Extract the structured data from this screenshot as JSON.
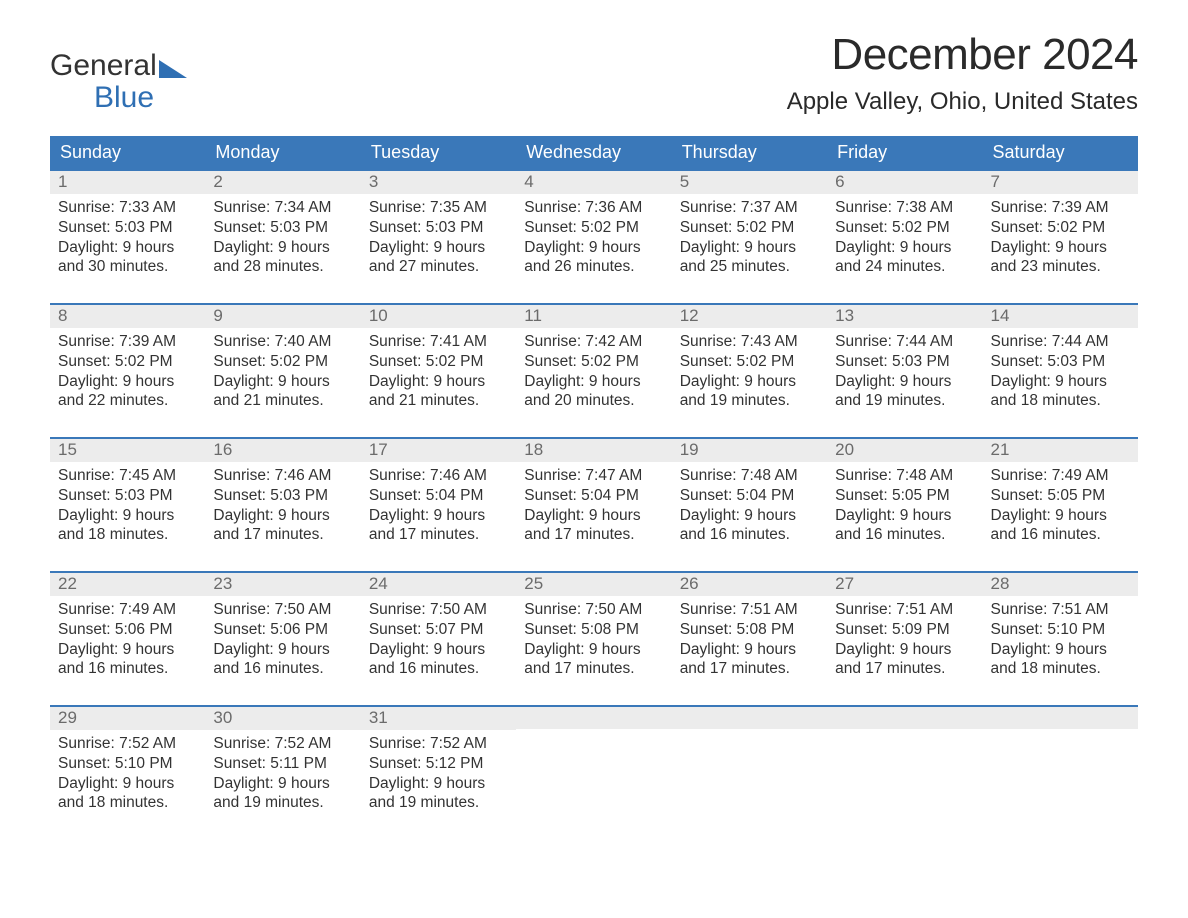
{
  "logo": {
    "word1": "General",
    "word2": "Blue"
  },
  "title": "December 2024",
  "location": "Apple Valley, Ohio, United States",
  "colors": {
    "header_bg": "#3a78b9",
    "header_text": "#ffffff",
    "date_bar_bg": "#ececec",
    "date_text": "#6b6b6b",
    "body_text": "#333333",
    "accent": "#2f6fb3",
    "page_bg": "#ffffff"
  },
  "day_names": [
    "Sunday",
    "Monday",
    "Tuesday",
    "Wednesday",
    "Thursday",
    "Friday",
    "Saturday"
  ],
  "weeks": [
    [
      {
        "date": "1",
        "sunrise": "Sunrise: 7:33 AM",
        "sunset": "Sunset: 5:03 PM",
        "day1": "Daylight: 9 hours",
        "day2": "and 30 minutes."
      },
      {
        "date": "2",
        "sunrise": "Sunrise: 7:34 AM",
        "sunset": "Sunset: 5:03 PM",
        "day1": "Daylight: 9 hours",
        "day2": "and 28 minutes."
      },
      {
        "date": "3",
        "sunrise": "Sunrise: 7:35 AM",
        "sunset": "Sunset: 5:03 PM",
        "day1": "Daylight: 9 hours",
        "day2": "and 27 minutes."
      },
      {
        "date": "4",
        "sunrise": "Sunrise: 7:36 AM",
        "sunset": "Sunset: 5:02 PM",
        "day1": "Daylight: 9 hours",
        "day2": "and 26 minutes."
      },
      {
        "date": "5",
        "sunrise": "Sunrise: 7:37 AM",
        "sunset": "Sunset: 5:02 PM",
        "day1": "Daylight: 9 hours",
        "day2": "and 25 minutes."
      },
      {
        "date": "6",
        "sunrise": "Sunrise: 7:38 AM",
        "sunset": "Sunset: 5:02 PM",
        "day1": "Daylight: 9 hours",
        "day2": "and 24 minutes."
      },
      {
        "date": "7",
        "sunrise": "Sunrise: 7:39 AM",
        "sunset": "Sunset: 5:02 PM",
        "day1": "Daylight: 9 hours",
        "day2": "and 23 minutes."
      }
    ],
    [
      {
        "date": "8",
        "sunrise": "Sunrise: 7:39 AM",
        "sunset": "Sunset: 5:02 PM",
        "day1": "Daylight: 9 hours",
        "day2": "and 22 minutes."
      },
      {
        "date": "9",
        "sunrise": "Sunrise: 7:40 AM",
        "sunset": "Sunset: 5:02 PM",
        "day1": "Daylight: 9 hours",
        "day2": "and 21 minutes."
      },
      {
        "date": "10",
        "sunrise": "Sunrise: 7:41 AM",
        "sunset": "Sunset: 5:02 PM",
        "day1": "Daylight: 9 hours",
        "day2": "and 21 minutes."
      },
      {
        "date": "11",
        "sunrise": "Sunrise: 7:42 AM",
        "sunset": "Sunset: 5:02 PM",
        "day1": "Daylight: 9 hours",
        "day2": "and 20 minutes."
      },
      {
        "date": "12",
        "sunrise": "Sunrise: 7:43 AM",
        "sunset": "Sunset: 5:02 PM",
        "day1": "Daylight: 9 hours",
        "day2": "and 19 minutes."
      },
      {
        "date": "13",
        "sunrise": "Sunrise: 7:44 AM",
        "sunset": "Sunset: 5:03 PM",
        "day1": "Daylight: 9 hours",
        "day2": "and 19 minutes."
      },
      {
        "date": "14",
        "sunrise": "Sunrise: 7:44 AM",
        "sunset": "Sunset: 5:03 PM",
        "day1": "Daylight: 9 hours",
        "day2": "and 18 minutes."
      }
    ],
    [
      {
        "date": "15",
        "sunrise": "Sunrise: 7:45 AM",
        "sunset": "Sunset: 5:03 PM",
        "day1": "Daylight: 9 hours",
        "day2": "and 18 minutes."
      },
      {
        "date": "16",
        "sunrise": "Sunrise: 7:46 AM",
        "sunset": "Sunset: 5:03 PM",
        "day1": "Daylight: 9 hours",
        "day2": "and 17 minutes."
      },
      {
        "date": "17",
        "sunrise": "Sunrise: 7:46 AM",
        "sunset": "Sunset: 5:04 PM",
        "day1": "Daylight: 9 hours",
        "day2": "and 17 minutes."
      },
      {
        "date": "18",
        "sunrise": "Sunrise: 7:47 AM",
        "sunset": "Sunset: 5:04 PM",
        "day1": "Daylight: 9 hours",
        "day2": "and 17 minutes."
      },
      {
        "date": "19",
        "sunrise": "Sunrise: 7:48 AM",
        "sunset": "Sunset: 5:04 PM",
        "day1": "Daylight: 9 hours",
        "day2": "and 16 minutes."
      },
      {
        "date": "20",
        "sunrise": "Sunrise: 7:48 AM",
        "sunset": "Sunset: 5:05 PM",
        "day1": "Daylight: 9 hours",
        "day2": "and 16 minutes."
      },
      {
        "date": "21",
        "sunrise": "Sunrise: 7:49 AM",
        "sunset": "Sunset: 5:05 PM",
        "day1": "Daylight: 9 hours",
        "day2": "and 16 minutes."
      }
    ],
    [
      {
        "date": "22",
        "sunrise": "Sunrise: 7:49 AM",
        "sunset": "Sunset: 5:06 PM",
        "day1": "Daylight: 9 hours",
        "day2": "and 16 minutes."
      },
      {
        "date": "23",
        "sunrise": "Sunrise: 7:50 AM",
        "sunset": "Sunset: 5:06 PM",
        "day1": "Daylight: 9 hours",
        "day2": "and 16 minutes."
      },
      {
        "date": "24",
        "sunrise": "Sunrise: 7:50 AM",
        "sunset": "Sunset: 5:07 PM",
        "day1": "Daylight: 9 hours",
        "day2": "and 16 minutes."
      },
      {
        "date": "25",
        "sunrise": "Sunrise: 7:50 AM",
        "sunset": "Sunset: 5:08 PM",
        "day1": "Daylight: 9 hours",
        "day2": "and 17 minutes."
      },
      {
        "date": "26",
        "sunrise": "Sunrise: 7:51 AM",
        "sunset": "Sunset: 5:08 PM",
        "day1": "Daylight: 9 hours",
        "day2": "and 17 minutes."
      },
      {
        "date": "27",
        "sunrise": "Sunrise: 7:51 AM",
        "sunset": "Sunset: 5:09 PM",
        "day1": "Daylight: 9 hours",
        "day2": "and 17 minutes."
      },
      {
        "date": "28",
        "sunrise": "Sunrise: 7:51 AM",
        "sunset": "Sunset: 5:10 PM",
        "day1": "Daylight: 9 hours",
        "day2": "and 18 minutes."
      }
    ],
    [
      {
        "date": "29",
        "sunrise": "Sunrise: 7:52 AM",
        "sunset": "Sunset: 5:10 PM",
        "day1": "Daylight: 9 hours",
        "day2": "and 18 minutes."
      },
      {
        "date": "30",
        "sunrise": "Sunrise: 7:52 AM",
        "sunset": "Sunset: 5:11 PM",
        "day1": "Daylight: 9 hours",
        "day2": "and 19 minutes."
      },
      {
        "date": "31",
        "sunrise": "Sunrise: 7:52 AM",
        "sunset": "Sunset: 5:12 PM",
        "day1": "Daylight: 9 hours",
        "day2": "and 19 minutes."
      },
      {
        "empty": true
      },
      {
        "empty": true
      },
      {
        "empty": true
      },
      {
        "empty": true
      }
    ]
  ]
}
